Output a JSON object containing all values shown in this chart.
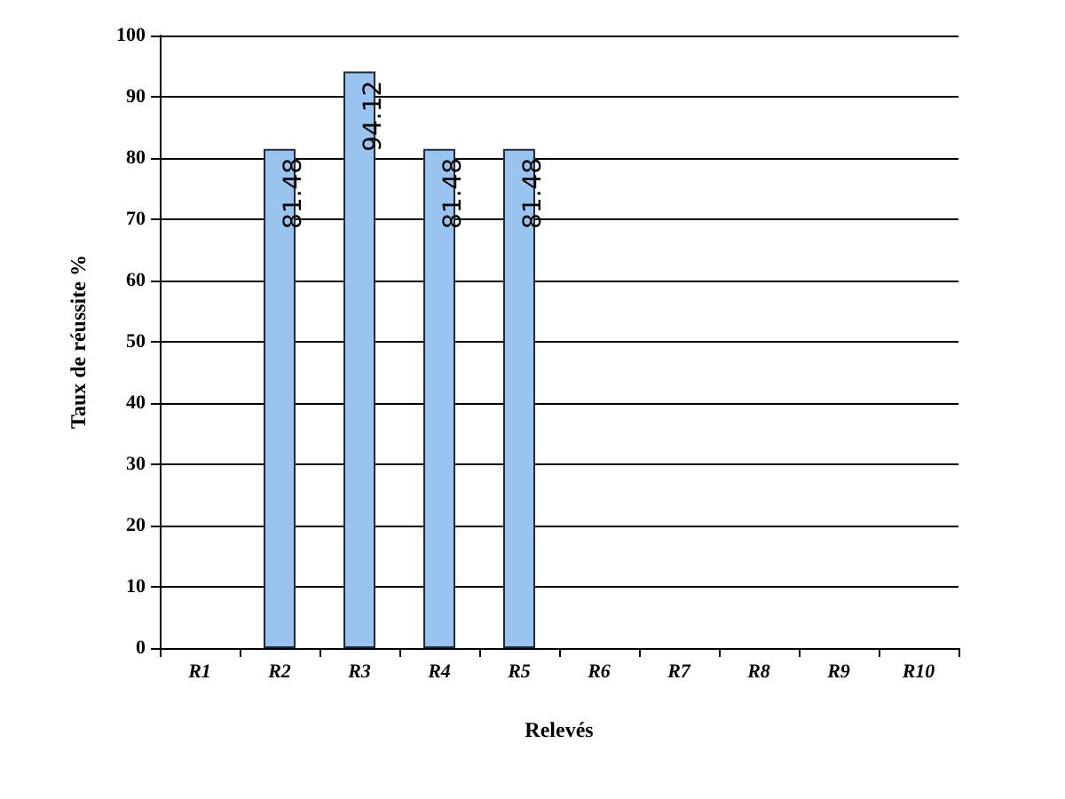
{
  "chart_data": {
    "type": "bar",
    "xlabel": "Relevés",
    "ylabel": "Taux de réussite %",
    "categories": [
      "R1",
      "R2",
      "R3",
      "R4",
      "R5",
      "R6",
      "R7",
      "R8",
      "R9",
      "R10"
    ],
    "values": [
      null,
      81.48,
      94.12,
      81.48,
      81.48,
      null,
      null,
      null,
      null,
      null
    ],
    "color": "#99c4f0",
    "ylim": [
      0,
      100
    ],
    "yticks": [
      0,
      10,
      20,
      30,
      40,
      50,
      60,
      70,
      80,
      90,
      100
    ],
    "grid": "y",
    "data_labels": true
  }
}
